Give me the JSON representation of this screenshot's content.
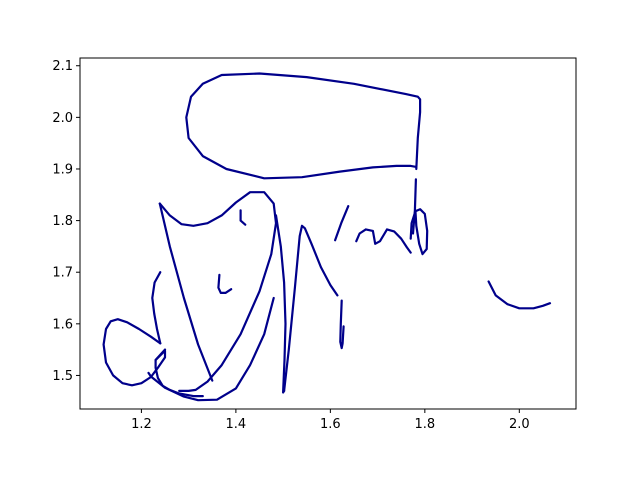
{
  "chart_data": {
    "type": "line",
    "title": "",
    "xlabel": "",
    "ylabel": "",
    "xlim": [
      1.07,
      2.12
    ],
    "ylim": [
      1.435,
      2.115
    ],
    "grid": false,
    "legend": "none",
    "color": "#00008b",
    "xticks": [
      1.2,
      1.4,
      1.6,
      1.8,
      2.0
    ],
    "yticks": [
      1.5,
      1.6,
      1.7,
      1.8,
      1.9,
      2.0,
      2.1
    ],
    "xtick_labels": [
      "1.2",
      "1.4",
      "1.6",
      "1.8",
      "2.0"
    ],
    "ytick_labels": [
      "1.5",
      "1.6",
      "1.7",
      "1.8",
      "1.9",
      "2.0",
      "2.1"
    ],
    "series": [
      {
        "x": [
          1.239,
          1.26,
          1.29,
          1.32,
          1.35
        ],
        "y": [
          1.833,
          1.75,
          1.65,
          1.56,
          1.49
        ]
      },
      {
        "x": [
          1.239,
          1.26,
          1.285,
          1.31,
          1.34,
          1.37,
          1.4,
          1.43,
          1.46,
          1.48,
          1.485,
          1.475,
          1.45,
          1.41,
          1.37,
          1.34,
          1.315,
          1.3,
          1.28
        ],
        "y": [
          1.833,
          1.81,
          1.793,
          1.79,
          1.795,
          1.81,
          1.835,
          1.855,
          1.855,
          1.833,
          1.795,
          1.735,
          1.663,
          1.58,
          1.52,
          1.488,
          1.472,
          1.47,
          1.47
        ]
      },
      {
        "x": [
          1.25,
          1.24,
          1.23,
          1.23,
          1.235,
          1.245,
          1.26,
          1.28,
          1.31,
          1.33
        ],
        "y": [
          1.55,
          1.54,
          1.53,
          1.515,
          1.495,
          1.48,
          1.472,
          1.465,
          1.46,
          1.46
        ]
      },
      {
        "x": [
          1.24,
          1.233,
          1.227,
          1.223,
          1.228,
          1.24
        ],
        "y": [
          1.562,
          1.59,
          1.62,
          1.65,
          1.68,
          1.7
        ]
      },
      {
        "x": [
          1.24,
          1.22,
          1.195,
          1.17,
          1.15,
          1.135,
          1.125,
          1.12,
          1.125,
          1.14,
          1.16,
          1.18,
          1.2,
          1.22,
          1.235,
          1.25,
          1.25,
          1.23
        ],
        "y": [
          1.562,
          1.575,
          1.59,
          1.603,
          1.609,
          1.605,
          1.59,
          1.56,
          1.525,
          1.5,
          1.485,
          1.481,
          1.485,
          1.497,
          1.515,
          1.535,
          1.548,
          1.53
        ]
      },
      {
        "x": [
          1.215,
          1.22,
          1.25,
          1.29,
          1.32,
          1.36,
          1.4,
          1.43,
          1.46,
          1.48
        ],
        "y": [
          1.505,
          1.498,
          1.476,
          1.459,
          1.452,
          1.453,
          1.475,
          1.52,
          1.58,
          1.65
        ]
      },
      {
        "x": [
          1.485,
          1.495,
          1.502,
          1.505,
          1.503,
          1.5,
          1.502
        ],
        "y": [
          1.81,
          1.75,
          1.68,
          1.6,
          1.53,
          1.467,
          1.47
        ]
      },
      {
        "x": [
          1.502,
          1.512,
          1.525,
          1.535,
          1.54,
          1.546,
          1.56,
          1.58,
          1.6,
          1.615
        ],
        "y": [
          1.47,
          1.55,
          1.67,
          1.77,
          1.79,
          1.785,
          1.755,
          1.71,
          1.675,
          1.655
        ]
      },
      {
        "x": [
          1.61,
          1.623,
          1.638
        ],
        "y": [
          1.762,
          1.795,
          1.828
        ]
      },
      {
        "x": [
          1.624,
          1.622,
          1.621,
          1.624,
          1.626,
          1.628
        ],
        "y": [
          1.645,
          1.6,
          1.565,
          1.553,
          1.562,
          1.595
        ]
      },
      {
        "x": [
          1.655,
          1.662,
          1.675,
          1.69,
          1.695,
          1.705,
          1.72,
          1.735,
          1.75,
          1.762,
          1.77
        ],
        "y": [
          1.76,
          1.775,
          1.783,
          1.78,
          1.755,
          1.76,
          1.783,
          1.779,
          1.765,
          1.748,
          1.738
        ]
      },
      {
        "x": [
          1.77,
          1.772,
          1.78,
          1.79,
          1.8,
          1.805,
          1.804,
          1.795,
          1.788,
          1.782,
          1.78
        ],
        "y": [
          1.765,
          1.795,
          1.818,
          1.822,
          1.813,
          1.78,
          1.745,
          1.735,
          1.755,
          1.79,
          1.82
        ]
      },
      {
        "x": [
          1.775,
          1.779,
          1.781
        ],
        "y": [
          1.775,
          1.82,
          1.88
        ]
      },
      {
        "x": [
          1.782,
          1.785,
          1.79,
          1.79,
          1.785,
          1.76,
          1.65,
          1.55,
          1.45,
          1.37,
          1.33,
          1.305,
          1.295,
          1.3,
          1.33,
          1.38,
          1.46,
          1.54,
          1.62,
          1.69,
          1.74,
          1.77,
          1.782
        ],
        "y": [
          1.9,
          1.96,
          2.01,
          2.035,
          2.04,
          2.045,
          2.065,
          2.078,
          2.085,
          2.082,
          2.065,
          2.04,
          2.0,
          1.96,
          1.925,
          1.9,
          1.882,
          1.884,
          1.895,
          1.903,
          1.906,
          1.906,
          1.904
        ]
      },
      {
        "x": [
          1.41,
          1.41,
          1.42
        ],
        "y": [
          1.82,
          1.8,
          1.792
        ]
      },
      {
        "x": [
          1.365,
          1.363,
          1.368,
          1.378,
          1.39
        ],
        "y": [
          1.695,
          1.67,
          1.66,
          1.66,
          1.667
        ]
      },
      {
        "x": [
          1.935,
          1.95,
          1.975,
          2.0,
          2.03,
          2.05,
          2.065
        ],
        "y": [
          1.682,
          1.655,
          1.638,
          1.63,
          1.63,
          1.635,
          1.64
        ]
      }
    ]
  }
}
